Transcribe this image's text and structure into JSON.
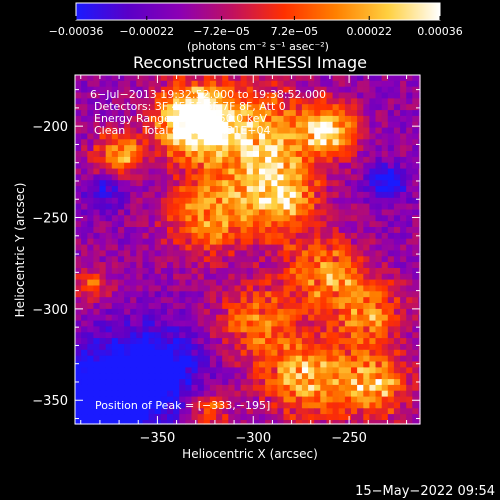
{
  "chart_data": {
    "type": "heatmap",
    "title": "Reconstructed RHESSI Image",
    "xlabel": "Heliocentric X (arcsec)",
    "ylabel": "Heliocentric Y (arcsec)",
    "xlim": [
      -393,
      -213
    ],
    "ylim": [
      -363,
      -172
    ],
    "x_ticks": [
      {
        "value": -350,
        "label": "−350"
      },
      {
        "value": -300,
        "label": "−300"
      },
      {
        "value": -250,
        "label": "−250"
      }
    ],
    "y_ticks": [
      {
        "value": -200,
        "label": "−200"
      },
      {
        "value": -250,
        "label": "−250"
      },
      {
        "value": -300,
        "label": "−300"
      },
      {
        "value": -350,
        "label": "−350"
      }
    ],
    "colorbar": {
      "range": [
        -0.00036,
        0.00036
      ],
      "tick_labels": [
        {
          "value": -0.00036,
          "label": "−0.00036"
        },
        {
          "value": -0.00022,
          "label": "−0.00022"
        },
        {
          "value": -7.2e-05,
          "label": "−7.2e−05"
        },
        {
          "value": 7.2e-05,
          "label": "7.2e−05"
        },
        {
          "value": 0.00022,
          "label": "0.00022"
        },
        {
          "value": 0.00036,
          "label": "0.00036"
        }
      ],
      "unit_label": "(photons cm⁻² s⁻¹ asec⁻²)",
      "colors": [
        "#1a1aff",
        "#5a00c8",
        "#8c00b4",
        "#c01060",
        "#ff3000",
        "#ff8000",
        "#ffd040",
        "#ffffff"
      ]
    },
    "annotations": [
      "6−Jul−2013 19:32:52.000 to 19:38:52.000",
      "Detectors: 3F 4F 5F 6F 7F 8F, Att 0",
      "Energy Range: 25.0 − 50.0 keV",
      "Clean     Total counts: 1.31E+04"
    ],
    "peak_label": "Position of Peak = [−333,−195]",
    "peak": {
      "x": -333,
      "y": -195
    },
    "timestamp": "15−May−2022 09:54",
    "grid": false
  }
}
